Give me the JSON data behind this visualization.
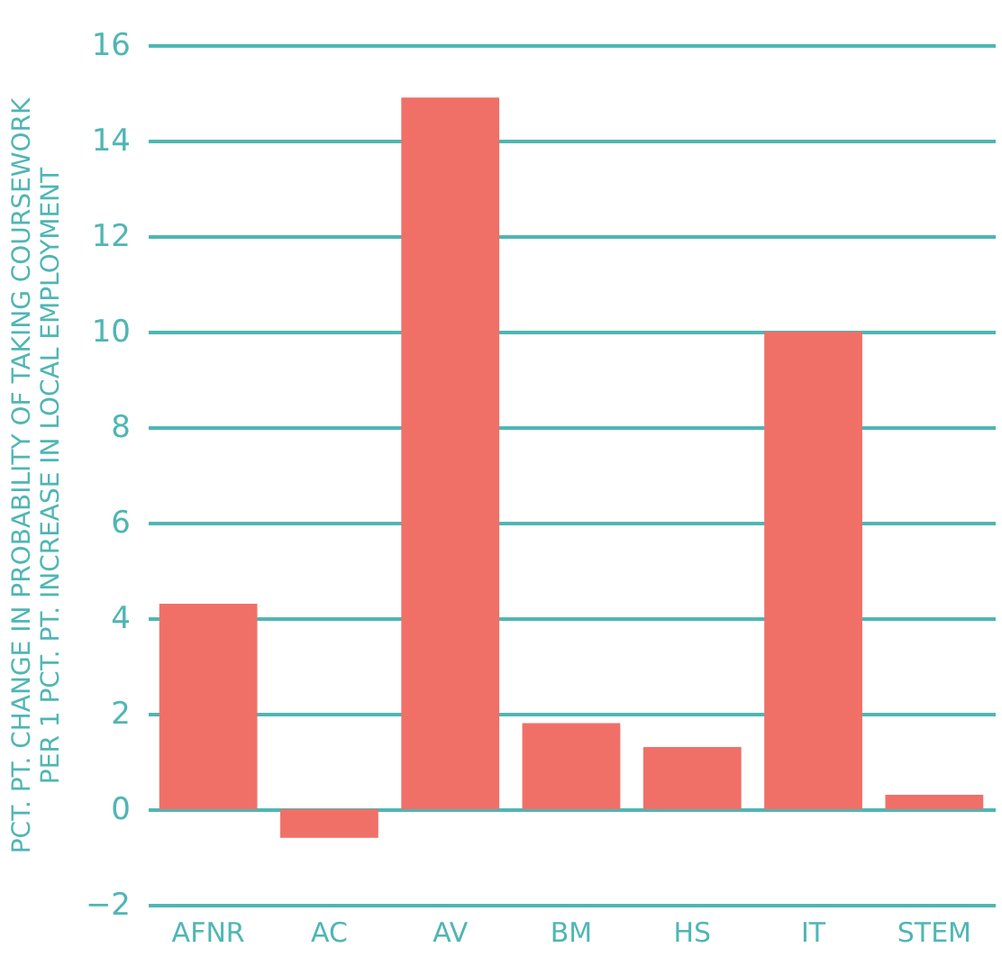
{
  "chart_data": {
    "type": "bar",
    "ylabel": "PCT. PT. CHANGE IN PROBABILITY OF TAKING COURSEWORK\nPER 1 PCT. PT. INCREASE IN LOCAL EMPLOYMENT",
    "categories": [
      "AFNR",
      "AC",
      "AV",
      "BM",
      "HS",
      "IT",
      "STEM"
    ],
    "values": [
      4.3,
      -0.6,
      14.9,
      1.8,
      1.3,
      10.0,
      0.3
    ],
    "color": "#f07068",
    "ylim": [
      -2,
      16
    ],
    "yticks": [
      -2,
      0,
      2,
      4,
      6,
      8,
      10,
      12,
      14,
      16
    ],
    "grid": "y"
  }
}
